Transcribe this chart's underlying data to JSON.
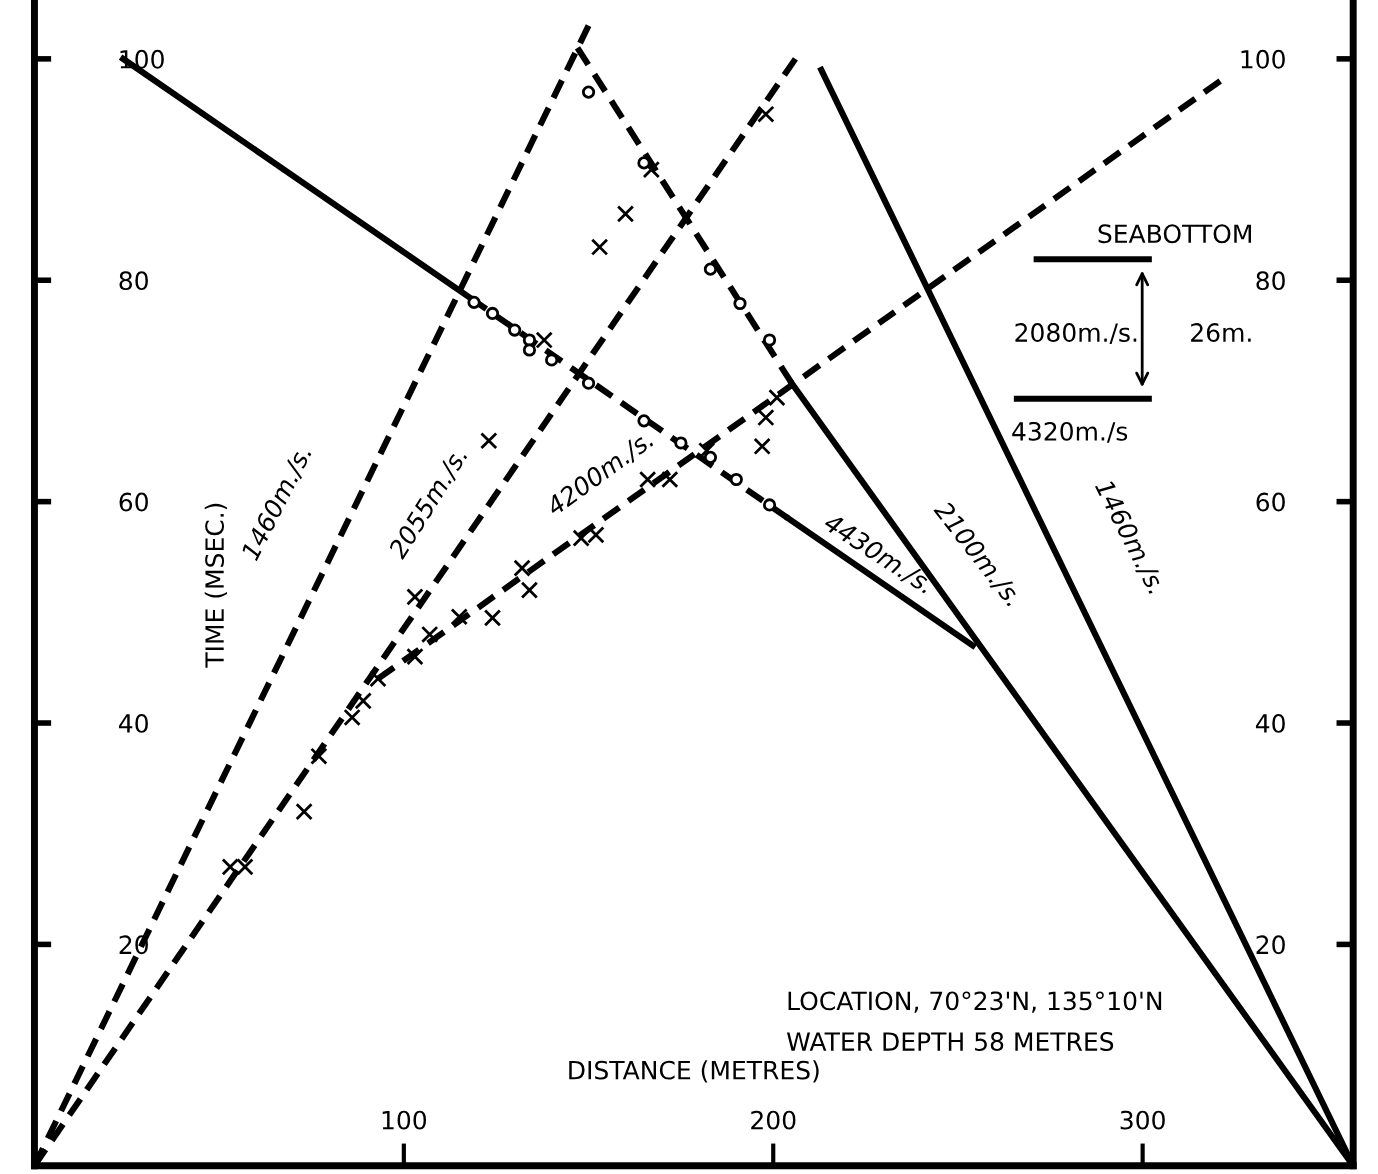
{
  "chart_data": {
    "type": "line",
    "xlabel": "DISTANCE (METRES)",
    "ylabel": "TIME (MSEC.)",
    "xlim": [
      0,
      357
    ],
    "ylim": [
      0,
      105
    ],
    "y2lim": [
      0,
      105
    ],
    "xticks": [
      100,
      200,
      300
    ],
    "yticks": [
      20,
      40,
      60,
      80,
      100
    ],
    "y2ticks": [
      20,
      40,
      60,
      80,
      100
    ],
    "grid": false,
    "series": [
      {
        "line_style": "dashed",
        "color": "#000000",
        "x": [
          0,
          150
        ],
        "values": [
          0,
          103
        ]
      },
      {
        "line_style": "dashed",
        "color": "#000000",
        "x": [
          0,
          206
        ],
        "values": [
          0,
          100
        ]
      },
      {
        "line_style": "dashed",
        "color": "#000000",
        "x": [
          93,
          321
        ],
        "values": [
          44,
          98
        ]
      },
      {
        "line_style": "solid",
        "color": "#000000",
        "x": [
          357,
          213
        ],
        "values": [
          0,
          99
        ]
      },
      {
        "line_style": "solid",
        "color": "#000000",
        "x": [
          357,
          205
        ],
        "values": [
          0,
          70.7
        ]
      },
      {
        "line_style": "dashed",
        "color": "#000000",
        "x": [
          205,
          147
        ],
        "values": [
          70.7,
          101
        ]
      },
      {
        "line_style": "solid",
        "color": "#000000",
        "x": [
          254,
          204
        ],
        "values": [
          47,
          58.5
        ]
      },
      {
        "line_style": "dashed",
        "color": "#000000",
        "x": [
          204,
          118
        ],
        "values": [
          58.5,
          78.4
        ]
      },
      {
        "line_style": "solid",
        "color": "#000000",
        "x": [
          118,
          24
        ],
        "values": [
          78.4,
          100
        ]
      },
      {
        "type": "scatter",
        "marker": "cross",
        "color": "#000000",
        "x": [
          53,
          57,
          73,
          77,
          86,
          89,
          93,
          103,
          123,
          138,
          153,
          160,
          167,
          198,
          103,
          107,
          115,
          124,
          132,
          134,
          148,
          152,
          166,
          172,
          182,
          197,
          198,
          201
        ],
        "values": [
          27,
          27,
          32,
          37,
          40.5,
          42,
          44,
          51.4,
          65.5,
          74.6,
          83,
          86,
          90,
          95,
          46,
          48,
          49.6,
          49.5,
          54,
          52,
          56.7,
          57,
          62,
          62,
          64.6,
          65,
          67.6,
          69.4
        ]
      },
      {
        "type": "scatter",
        "marker": "circle",
        "color": "#000000",
        "x": [
          119,
          124,
          130,
          134,
          134,
          140,
          150,
          165,
          175,
          183,
          190,
          199,
          150,
          165,
          183,
          191,
          199
        ],
        "values": [
          78,
          77,
          75.5,
          74.6,
          73.7,
          72.8,
          70.7,
          67.3,
          65.3,
          64,
          62,
          59.7,
          97,
          90.6,
          81,
          77.9,
          74.6
        ]
      }
    ],
    "annotations": [
      "1460m./s.",
      "2055m./s.",
      "4200m./s.",
      "4430m./s.",
      "2100m./s.",
      "1460m./s.",
      "SEABOTTOM",
      "2080m./s.",
      "26m.",
      "4320m./s",
      "LOCATION, 70°23'N, 135°10'N",
      "WATER DEPTH 58 METRES"
    ]
  }
}
